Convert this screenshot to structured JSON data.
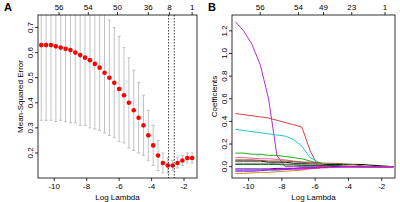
{
  "chart_data": [
    {
      "type": "scatter",
      "panel_label": "A",
      "x_label": "Log Lambda",
      "y_label": "Mean-Squared Error",
      "xlim": [
        -11,
        -1.2
      ],
      "xticks": [
        -10,
        -8,
        -6,
        -4,
        -2
      ],
      "ylim": [
        0.1,
        0.75
      ],
      "yticks": [
        0.2,
        0.3,
        0.4,
        0.5,
        0.6,
        0.7
      ],
      "top_ticks": [
        {
          "value": -9.7,
          "label": "56"
        },
        {
          "value": -7.9,
          "label": "54"
        },
        {
          "value": -6.1,
          "label": "50"
        },
        {
          "value": -4.2,
          "label": "36"
        },
        {
          "value": -2.9,
          "label": "8"
        },
        {
          "value": -1.5,
          "label": "1"
        }
      ],
      "reference_lines": [
        -2.95,
        -2.6
      ],
      "x": [
        -10.8,
        -10.5,
        -10.2,
        -9.9,
        -9.6,
        -9.3,
        -9.0,
        -8.7,
        -8.4,
        -8.1,
        -7.8,
        -7.5,
        -7.2,
        -6.9,
        -6.6,
        -6.3,
        -6.0,
        -5.7,
        -5.4,
        -5.1,
        -4.8,
        -4.5,
        -4.2,
        -3.9,
        -3.6,
        -3.3,
        -3.0,
        -2.7,
        -2.4,
        -2.1,
        -1.8,
        -1.5
      ],
      "series": [
        {
          "color": "#ff0000",
          "marker": "dot",
          "values": [
            0.63,
            0.63,
            0.63,
            0.625,
            0.62,
            0.615,
            0.61,
            0.6,
            0.59,
            0.58,
            0.57,
            0.555,
            0.54,
            0.52,
            0.5,
            0.48,
            0.455,
            0.43,
            0.4,
            0.37,
            0.34,
            0.31,
            0.27,
            0.23,
            0.19,
            0.16,
            0.15,
            0.15,
            0.16,
            0.17,
            0.18,
            0.18
          ],
          "error": [
            0.3,
            0.3,
            0.3,
            0.3,
            0.29,
            0.29,
            0.29,
            0.28,
            0.28,
            0.27,
            0.27,
            0.26,
            0.25,
            0.24,
            0.23,
            0.22,
            0.21,
            0.19,
            0.18,
            0.16,
            0.14,
            0.12,
            0.1,
            0.08,
            0.06,
            0.04,
            0.03,
            0.02,
            0.02,
            0.02,
            0.02,
            0.02
          ]
        }
      ]
    },
    {
      "type": "line",
      "panel_label": "B",
      "x_label": "Log Lambda",
      "y_label": "Coefficients",
      "xlim": [
        -11,
        -1.2
      ],
      "xticks": [
        -10,
        -8,
        -6,
        -4,
        -2
      ],
      "ylim": [
        -0.1,
        1.34
      ],
      "yticks": [
        {
          "value": 0,
          "label": "0.0"
        },
        {
          "value": 0.2,
          "label": "0.2"
        },
        {
          "value": 0.4,
          "label": "0.4"
        },
        {
          "value": 0.6,
          "label": "0.6"
        },
        {
          "value": 0.8,
          "label": "0.8"
        },
        {
          "value": 1.0,
          "label": "1.0"
        },
        {
          "value": 1.2,
          "label": "1.2"
        }
      ],
      "top_ticks": [
        {
          "value": -9.3,
          "label": "56"
        },
        {
          "value": -7.0,
          "label": "54"
        },
        {
          "value": -5.5,
          "label": "49"
        },
        {
          "value": -3.8,
          "label": "23"
        },
        {
          "value": -1.8,
          "label": "1"
        }
      ],
      "x": [
        -10.8,
        -10.3,
        -9.8,
        -9.3,
        -8.8,
        -8.3,
        -7.8,
        -7.3,
        -6.8,
        -6.3,
        -5.8,
        -5.3,
        -4.8,
        -4.3,
        -3.8,
        -3.3,
        -2.8,
        -2.3,
        -1.8,
        -1.3
      ],
      "series": [
        {
          "color": "#b030c8",
          "values": [
            1.28,
            1.2,
            1.08,
            0.9,
            0.6,
            0.1,
            0,
            0,
            0,
            0,
            0,
            0,
            0,
            0,
            0,
            0,
            0,
            0,
            0,
            0
          ]
        },
        {
          "color": "#d84040",
          "values": [
            0.47,
            0.46,
            0.45,
            0.44,
            0.43,
            0.41,
            0.39,
            0.37,
            0.35,
            0.14,
            0,
            0,
            0,
            0,
            0,
            0,
            0,
            0,
            0,
            0
          ]
        },
        {
          "color": "#20c8c8",
          "values": [
            0.33,
            0.32,
            0.31,
            0.3,
            0.29,
            0.28,
            0.27,
            0.24,
            0.18,
            0.08,
            0.04,
            0,
            0,
            0,
            0,
            0,
            0,
            0,
            0,
            0
          ]
        },
        {
          "color": "#22aa22",
          "values": [
            0.12,
            0.12,
            0.11,
            0.11,
            0.1,
            0.1,
            0.09,
            0.08,
            0.07,
            0.05,
            0.03,
            0.01,
            0,
            0,
            0,
            0,
            0,
            0,
            0,
            0
          ]
        },
        {
          "color": "#000000",
          "values": [
            0.05,
            0.05,
            0.05,
            0.05,
            0.04,
            0.04,
            0.04,
            0.03,
            0.03,
            0.03,
            0.02,
            0.02,
            0.02,
            0.02,
            0.02,
            0.02,
            0.015,
            0.01,
            0.005,
            0
          ]
        },
        {
          "color": "#2040e0",
          "values": [
            -0.04,
            -0.04,
            -0.04,
            -0.035,
            -0.03,
            -0.03,
            -0.025,
            -0.02,
            -0.02,
            -0.015,
            -0.01,
            0,
            0,
            0,
            0,
            0,
            0,
            0,
            0,
            0
          ]
        },
        {
          "color": "#909090",
          "values": [
            0.03,
            0.03,
            0.03,
            0.03,
            0.03,
            0.025,
            0.025,
            0.02,
            0.02,
            0.02,
            0.015,
            0.01,
            0.01,
            0.005,
            0,
            0,
            0,
            0,
            0,
            0
          ]
        },
        {
          "color": "#e08a20",
          "values": [
            -0.06,
            -0.06,
            -0.055,
            -0.05,
            -0.05,
            -0.045,
            -0.04,
            -0.035,
            -0.03,
            -0.02,
            -0.01,
            0,
            0,
            0,
            0,
            0,
            0,
            0,
            0,
            0
          ]
        },
        {
          "color": "#e060a0",
          "values": [
            0.08,
            0.08,
            0.075,
            0.07,
            0.07,
            0.065,
            0.06,
            0.05,
            0.04,
            0.03,
            0.02,
            0.01,
            0,
            0,
            0,
            0,
            0,
            0,
            0,
            0
          ]
        },
        {
          "color": "#106010",
          "values": [
            0.02,
            0.02,
            0.02,
            0.02,
            0.02,
            0.02,
            0.015,
            0.015,
            0.01,
            0.01,
            0.01,
            0.01,
            0.01,
            0.005,
            0.005,
            0,
            0,
            0,
            0,
            0
          ]
        },
        {
          "color": "#102080",
          "values": [
            -0.02,
            -0.02,
            -0.02,
            -0.02,
            -0.02,
            -0.015,
            -0.015,
            -0.015,
            -0.01,
            -0.01,
            -0.01,
            -0.005,
            0,
            0,
            0,
            0,
            0,
            0,
            0,
            0
          ]
        },
        {
          "color": "#8b5a2b",
          "values": [
            0.06,
            0.06,
            0.06,
            0.055,
            0.05,
            0.05,
            0.05,
            0.045,
            0.04,
            0.04,
            0.035,
            0.03,
            0.03,
            0.025,
            0.02,
            0.01,
            0,
            0,
            0,
            0
          ]
        },
        {
          "color": "#ff00ff",
          "values": [
            -0.03,
            -0.03,
            -0.03,
            -0.03,
            -0.025,
            -0.025,
            -0.02,
            -0.02,
            -0.02,
            -0.015,
            -0.01,
            -0.01,
            -0.005,
            0,
            0,
            0,
            0,
            0,
            0,
            0
          ]
        }
      ]
    }
  ]
}
